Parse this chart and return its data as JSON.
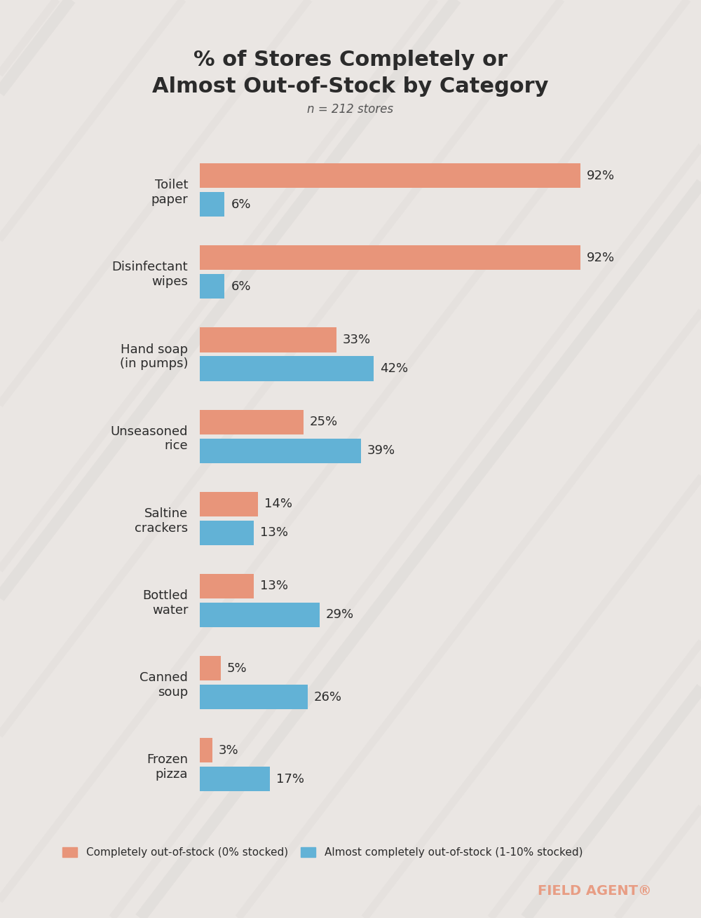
{
  "title_line1": "% of Stores Completely or",
  "title_line2": "Almost Out-of-Stock by Category",
  "subtitle": "n = 212 stores",
  "categories": [
    "Toilet\npaper",
    "Disinfectant\nwipes",
    "Hand soap\n(in pumps)",
    "Unseasoned\nrice",
    "Saltine\ncrackers",
    "Bottled\nwater",
    "Canned\nsoup",
    "Frozen\npizza"
  ],
  "completely_oos": [
    92,
    92,
    33,
    25,
    14,
    13,
    5,
    3
  ],
  "almost_oos": [
    6,
    6,
    42,
    39,
    13,
    29,
    26,
    17
  ],
  "orange_color": "#E8957A",
  "blue_color": "#62B2D6",
  "title_color": "#2b2b2b",
  "subtitle_color": "#555555",
  "label_color": "#2b2b2b",
  "value_color": "#2b2b2b",
  "background_color": "#EAE6E3",
  "chart_bg": "#EAE6E3",
  "legend_label_orange": "Completely out-of-stock (0% stocked)",
  "legend_label_blue": "Almost completely out-of-stock (1-10% stocked)",
  "bar_height": 0.3,
  "xlim": [
    0,
    105
  ],
  "fieldagent_color": "#E8957A",
  "title_fontsize": 22,
  "label_fontsize": 13,
  "value_fontsize": 13,
  "subtitle_fontsize": 12
}
